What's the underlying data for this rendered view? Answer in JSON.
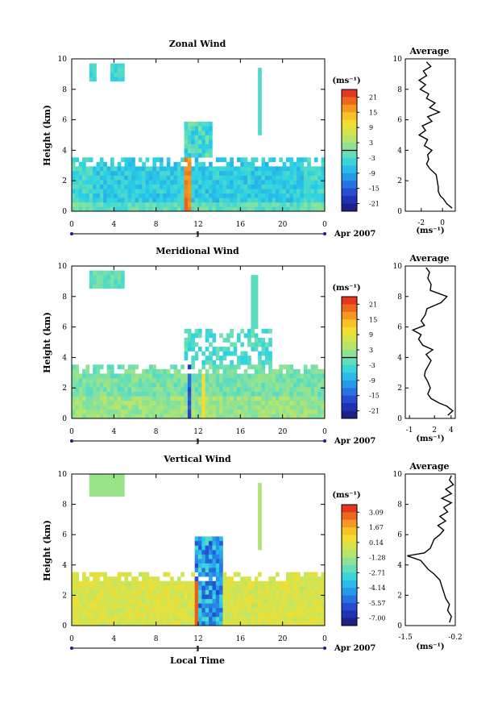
{
  "page": {
    "xlabel": "Local Time",
    "date_label": "Apr 2007",
    "day_label": "1"
  },
  "chart_data": [
    {
      "type": "heatmap",
      "title": "Zonal Wind",
      "ylabel": "Height (km)",
      "xlabel": "Local Time",
      "x_ticks": [
        "0",
        "4",
        "8",
        "12",
        "16",
        "20",
        "0"
      ],
      "y_ticks": [
        "0",
        "2",
        "4",
        "6",
        "8",
        "10"
      ],
      "xlim": [
        0,
        24
      ],
      "ylim": [
        0,
        10
      ],
      "colorbar": {
        "unit": "(ms⁻¹)",
        "ticks": [
          "21",
          "15",
          "9",
          "3",
          "-3",
          "-9",
          "-15",
          "-21"
        ],
        "range": [
          -24,
          24
        ],
        "zero_line": true
      },
      "average_profile": {
        "title": "Average",
        "xlabel": "(ms⁻¹)",
        "x_ticks": [
          "-2",
          "0"
        ],
        "xlim": [
          -3.5,
          1.2
        ],
        "heights": [
          0.2,
          0.5,
          0.8,
          1.0,
          1.3,
          1.6,
          2.0,
          2.4,
          2.8,
          3.1,
          3.4,
          3.7,
          4.0,
          4.3,
          4.7,
          5.0,
          5.3,
          5.6,
          5.9,
          6.2,
          6.5,
          6.8,
          7.1,
          7.4,
          7.7,
          8.0,
          8.3,
          8.6,
          8.9,
          9.2,
          9.5,
          9.8
        ],
        "values": [
          0.9,
          0.4,
          0.1,
          -0.2,
          -0.4,
          -0.4,
          -0.5,
          -0.6,
          -1.2,
          -1.5,
          -1.3,
          -1.4,
          -1.0,
          -1.7,
          -1.4,
          -2.2,
          -1.6,
          -1.9,
          -1.0,
          -1.4,
          -0.3,
          -1.2,
          -0.7,
          -1.5,
          -1.3,
          -2.1,
          -1.6,
          -2.2,
          -1.5,
          -1.8,
          -1.1,
          -1.5
        ]
      }
    },
    {
      "type": "heatmap",
      "title": "Meridional Wind",
      "ylabel": "Height (km)",
      "xlabel": "Local Time",
      "x_ticks": [
        "0",
        "4",
        "8",
        "12",
        "16",
        "20",
        "0"
      ],
      "y_ticks": [
        "0",
        "2",
        "4",
        "6",
        "8",
        "10"
      ],
      "xlim": [
        0,
        24
      ],
      "ylim": [
        0,
        10
      ],
      "colorbar": {
        "unit": "(ms⁻¹)",
        "ticks": [
          "21",
          "15",
          "9",
          "3",
          "-3",
          "-9",
          "-15",
          "-21"
        ],
        "range": [
          -24,
          24
        ],
        "zero_line": true
      },
      "average_profile": {
        "title": "Average",
        "xlabel": "(ms⁻¹)",
        "x_ticks": [
          "-1",
          "2",
          "4"
        ],
        "xlim": [
          -1.5,
          4.5
        ],
        "heights": [
          0.2,
          0.5,
          0.8,
          1.0,
          1.3,
          1.6,
          2.0,
          2.4,
          2.8,
          3.1,
          3.4,
          3.8,
          4.2,
          4.5,
          4.8,
          5.2,
          5.5,
          5.8,
          6.1,
          6.4,
          6.8,
          7.2,
          7.6,
          8.0,
          8.4,
          8.8,
          9.2,
          9.6,
          9.9
        ],
        "values": [
          3.6,
          4.2,
          3.5,
          2.6,
          1.6,
          1.2,
          1.5,
          1.2,
          0.8,
          0.9,
          1.2,
          1.6,
          1.0,
          1.8,
          0.6,
          0.1,
          0.4,
          -0.6,
          0.8,
          0.4,
          0.9,
          1.1,
          2.8,
          3.5,
          1.5,
          1.6,
          1.2,
          1.4,
          1.0
        ]
      }
    },
    {
      "type": "heatmap",
      "title": "Vertical Wind",
      "ylabel": "Height (km)",
      "xlabel": "Local Time",
      "x_ticks": [
        "0",
        "4",
        "8",
        "12",
        "16",
        "20",
        "0"
      ],
      "y_ticks": [
        "0",
        "2",
        "4",
        "6",
        "8",
        "10"
      ],
      "xlim": [
        0,
        24
      ],
      "ylim": [
        0,
        10
      ],
      "colorbar": {
        "unit": "(ms⁻¹)",
        "ticks": [
          "3.09",
          "1.67",
          "0.14",
          "-1.28",
          "-2.71",
          "-4.14",
          "-5.57",
          "-7.00"
        ],
        "range": [
          -7.7,
          3.8
        ],
        "zero_line": false
      },
      "average_profile": {
        "title": "Average",
        "xlabel": "(ms⁻¹)",
        "x_ticks": [
          "-1.5",
          "-0.2"
        ],
        "xlim": [
          -1.5,
          -0.2
        ],
        "heights": [
          0.2,
          0.6,
          1.0,
          1.4,
          1.8,
          2.2,
          2.6,
          3.0,
          3.4,
          3.7,
          4.0,
          4.3,
          4.6,
          4.8,
          5.1,
          5.4,
          5.7,
          6.0,
          6.3,
          6.6,
          6.9,
          7.2,
          7.5,
          7.8,
          8.1,
          8.4,
          8.7,
          9.0,
          9.3,
          9.6,
          9.9
        ],
        "values": [
          -0.35,
          -0.3,
          -0.4,
          -0.35,
          -0.45,
          -0.5,
          -0.55,
          -0.6,
          -0.75,
          -0.9,
          -1.0,
          -1.1,
          -1.45,
          -1.0,
          -0.85,
          -0.8,
          -0.75,
          -0.6,
          -0.5,
          -0.65,
          -0.45,
          -0.6,
          -0.4,
          -0.5,
          -0.3,
          -0.55,
          -0.3,
          -0.45,
          -0.25,
          -0.35,
          -0.3
        ]
      }
    }
  ]
}
